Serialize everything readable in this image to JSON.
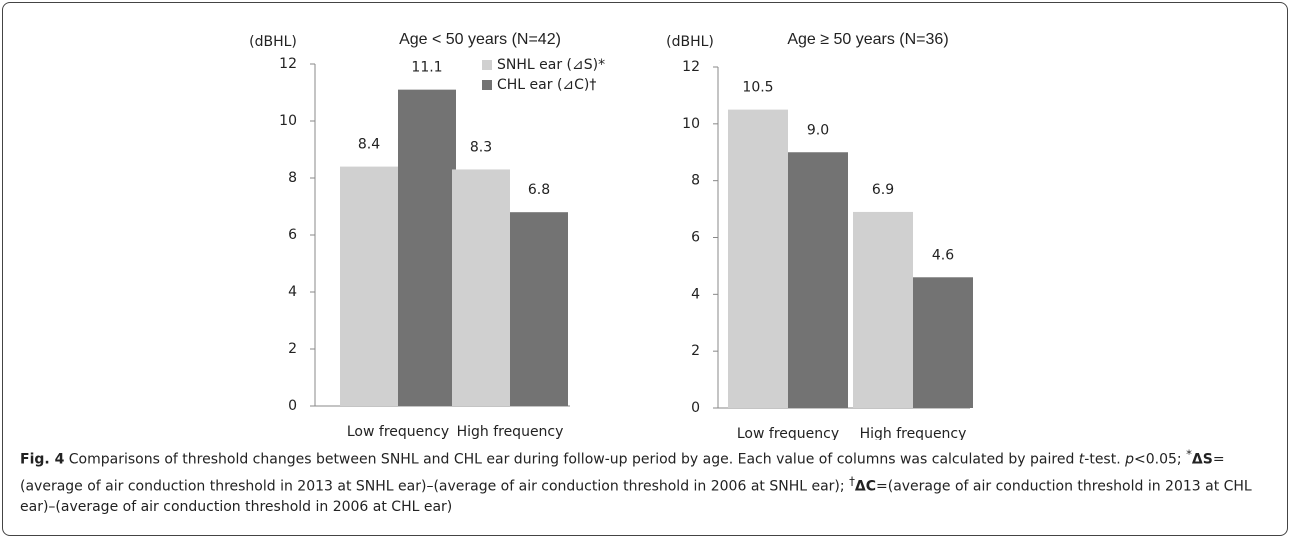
{
  "chart_data": [
    {
      "type": "bar",
      "title": "Age < 50 years (N=42)",
      "y_label": "(dBHL)",
      "categories": [
        "Low frequency",
        "High frequency"
      ],
      "series": [
        {
          "name": "SNHL ear (⊿S)*",
          "color": "#d0d0d0",
          "values": [
            8.4,
            8.3
          ],
          "value_labels": [
            "8.4",
            "8.3"
          ]
        },
        {
          "name": "CHL ear (⊿C)†",
          "color": "#737373",
          "values": [
            11.1,
            6.8
          ],
          "value_labels": [
            "11.1",
            "6.8"
          ]
        }
      ],
      "ylim": [
        0,
        12
      ],
      "yticks": [
        0,
        2,
        4,
        6,
        8,
        10,
        12
      ],
      "legend": true
    },
    {
      "type": "bar",
      "title": "Age ≥ 50 years (N=36)",
      "y_label": "(dBHL)",
      "categories": [
        "Low frequency",
        "High frequency"
      ],
      "series": [
        {
          "name": "SNHL ear (⊿S)*",
          "color": "#d0d0d0",
          "values": [
            10.5,
            6.9
          ],
          "value_labels": [
            "10.5",
            "6.9"
          ]
        },
        {
          "name": "CHL ear (⊿C)†",
          "color": "#737373",
          "values": [
            9.0,
            4.6
          ],
          "value_labels": [
            "9.0",
            "4.6"
          ]
        }
      ],
      "ylim": [
        0,
        12
      ],
      "yticks": [
        0,
        2,
        4,
        6,
        8,
        10,
        12
      ],
      "legend": false
    }
  ],
  "caption": [
    "Fig. 4",
    " Comparisons of threshold changes between SNHL and CHL ear during follow-up period by age. Each value of columns was calculated by paired ",
    "t",
    "-test. ",
    "p",
    "<0.05; ",
    "*",
    "ΔS",
    "=(average of air conduction threshold in 2013 at SNHL ear)–(average of air conduction threshold in 2006 at SNHL ear); ",
    "†",
    "ΔC",
    "=(average of air conduction threshold in 2013 at CHL ear)–(average of air conduction threshold in 2006 at CHL ear)"
  ]
}
